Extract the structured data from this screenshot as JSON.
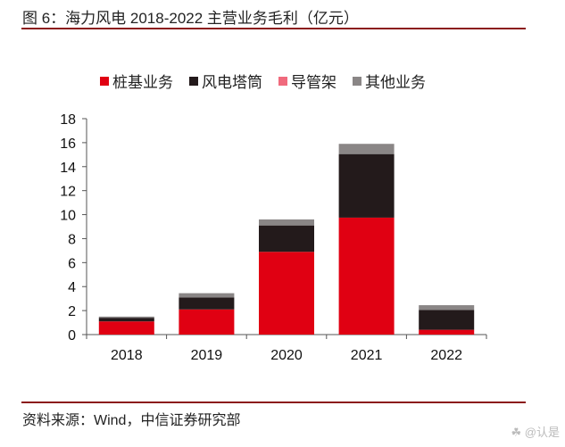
{
  "title": "图 6：海力风电 2018-2022 主营业务毛利（亿元）",
  "source": "资料来源：Wind，中信证券研究部",
  "watermark": "@认是",
  "watermark_icon": "toutiao-logo-icon",
  "chart_data": {
    "type": "bar",
    "stacked": true,
    "title": "海力风电 2018-2022 主营业务毛利（亿元）",
    "xlabel": "",
    "ylabel": "",
    "categories": [
      "2018",
      "2019",
      "2020",
      "2021",
      "2022"
    ],
    "ylim": [
      0,
      18
    ],
    "yticks": [
      0,
      2,
      4,
      6,
      8,
      10,
      12,
      14,
      16,
      18
    ],
    "ytick_labels": [
      "0",
      "2",
      "4",
      "6",
      "8",
      "10",
      "12",
      "14",
      "16",
      "18"
    ],
    "grid": false,
    "legend_position": "top",
    "series": [
      {
        "name": "桩基业务",
        "color": "#e00012",
        "values": [
          1.1,
          2.1,
          6.9,
          9.75,
          0.4
        ]
      },
      {
        "name": "风电塔筒",
        "color": "#231a1b",
        "values": [
          0.3,
          1.0,
          2.2,
          5.3,
          1.65
        ]
      },
      {
        "name": "导管架",
        "color": "#f06a7d",
        "values": [
          0.0,
          0.0,
          0.0,
          0.0,
          0.0
        ]
      },
      {
        "name": "其他业务",
        "color": "#8a8686",
        "values": [
          0.1,
          0.35,
          0.5,
          0.85,
          0.4
        ]
      }
    ]
  }
}
